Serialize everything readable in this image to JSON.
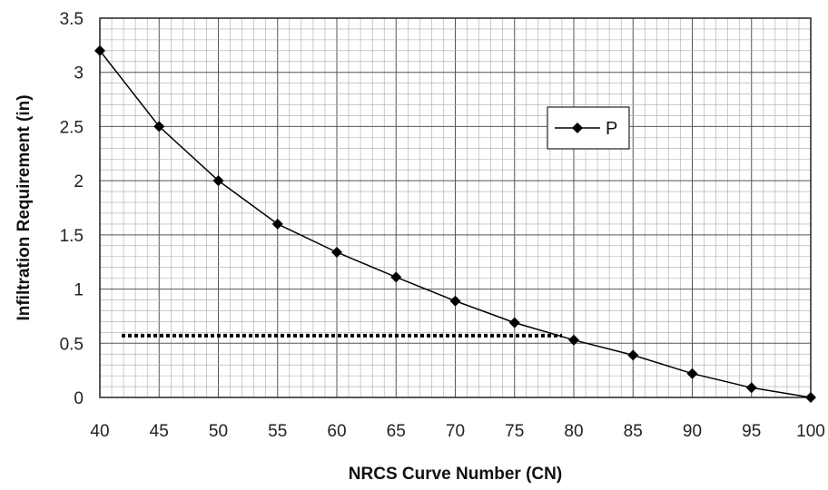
{
  "chart_data": {
    "type": "line",
    "title": "",
    "xlabel": "NRCS Curve Number (CN)",
    "ylabel": "Infiltration Requirement (in)",
    "xlim": [
      40,
      100
    ],
    "ylim": [
      0,
      3.5
    ],
    "xticks": [
      "40",
      "45",
      "50",
      "55",
      "60",
      "65",
      "70",
      "75",
      "80",
      "85",
      "90",
      "95",
      "100"
    ],
    "yticks": [
      "0",
      "0.5",
      "1",
      "1.5",
      "2",
      "2.5",
      "3",
      "3.5"
    ],
    "grid": true,
    "legend_position": "upper-right",
    "series": [
      {
        "name": "P",
        "marker": "diamond",
        "color": "#000000",
        "x": [
          40,
          45,
          50,
          55,
          60,
          65,
          70,
          75,
          80,
          85,
          90,
          95,
          100
        ],
        "y": [
          3.2,
          2.5,
          2.0,
          1.6,
          1.34,
          1.11,
          0.89,
          0.69,
          0.53,
          0.39,
          0.22,
          0.09,
          0.0
        ]
      }
    ],
    "annotations": [
      {
        "type": "dotted-horizontal-line",
        "y": 0.57,
        "x_from": 40,
        "x_to": 79
      }
    ]
  }
}
